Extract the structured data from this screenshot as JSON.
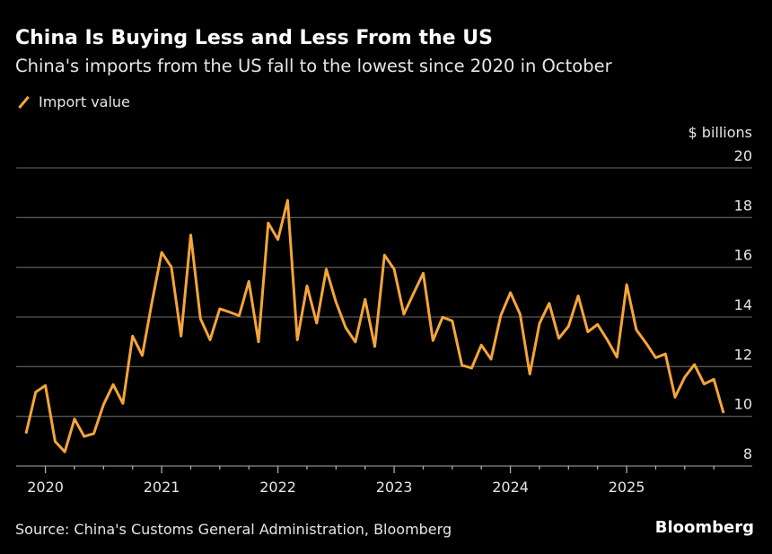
{
  "header": {
    "title": "China Is Buying Less and Less From the US",
    "subtitle": "China's imports from the US fall to the lowest since 2020 in October"
  },
  "footer": {
    "source": "Source: China's Customs General Administration, Bloomberg",
    "brand": "Bloomberg"
  },
  "chart_data": {
    "type": "line",
    "title": "China Is Buying Less and Less From the US",
    "subtitle": "China's imports from the US fall to the lowest since 2020 in October",
    "ylabel": "$ billions",
    "ylim": [
      8,
      20
    ],
    "yticks": [
      "8",
      "10",
      "12",
      "14",
      "16",
      "18",
      "20"
    ],
    "xticks": [
      "2020",
      "2021",
      "2022",
      "2023",
      "2024",
      "2025"
    ],
    "x_start": "2019-10",
    "x_end": "2025-10",
    "x_frequency": "monthly",
    "grid": true,
    "legend": "top-left",
    "colors": {
      "series": "#f5a53a",
      "background": "#000000",
      "grid": "#555555"
    },
    "series": [
      {
        "name": "Import value",
        "values": [
          9.31,
          10.98,
          11.24,
          8.99,
          8.57,
          9.89,
          9.19,
          9.31,
          10.47,
          11.28,
          10.52,
          13.23,
          12.45,
          14.6,
          16.6,
          16.01,
          13.23,
          17.3,
          13.93,
          13.08,
          14.33,
          14.2,
          14.05,
          15.43,
          13.0,
          17.78,
          17.12,
          18.69,
          13.08,
          15.25,
          13.75,
          15.92,
          14.6,
          13.57,
          12.99,
          14.71,
          12.81,
          16.49,
          15.92,
          14.11,
          14.95,
          15.76,
          13.05,
          13.99,
          13.84,
          12.06,
          11.94,
          12.87,
          12.3,
          14.05,
          14.98,
          14.11,
          11.7,
          13.74,
          14.55,
          13.14,
          13.62,
          14.85,
          13.4,
          13.7,
          13.08,
          12.38,
          15.3,
          13.48,
          12.95,
          12.36,
          12.51,
          10.77,
          11.58,
          12.08,
          11.3,
          11.49,
          10.13
        ]
      }
    ]
  }
}
